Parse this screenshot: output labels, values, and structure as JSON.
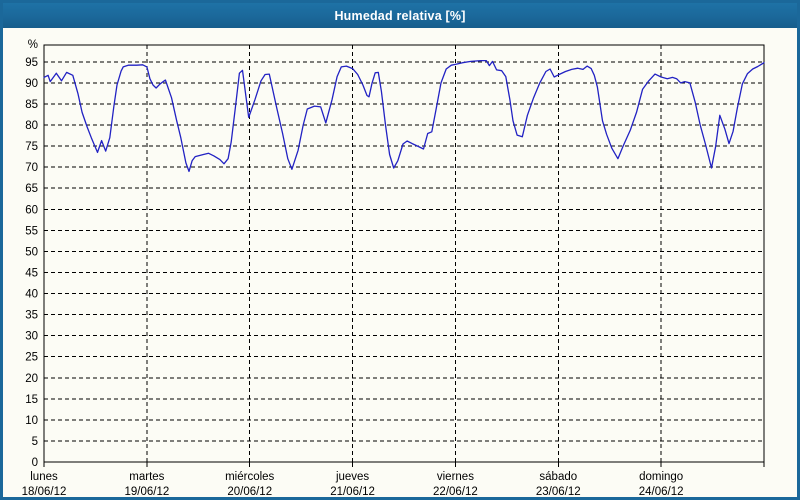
{
  "window": {
    "title": "Humedad relativa [%]"
  },
  "colors": {
    "titlebar_bg": "#1b689a",
    "frame_border": "#1b689a",
    "page_bg": "#fcfcf5",
    "title_text": "#ffffff",
    "grid": "#000000",
    "axis_text": "#000000",
    "series_line": "#2222c3"
  },
  "chart_data": {
    "type": "line",
    "title": "Humedad relativa [%]",
    "ylabel": "%",
    "xlabel": "",
    "ylim": [
      0,
      99
    ],
    "grid": "dashed",
    "legend": "none",
    "yticks": [
      0,
      5,
      10,
      15,
      20,
      25,
      30,
      35,
      40,
      45,
      50,
      55,
      60,
      65,
      70,
      75,
      80,
      85,
      90,
      95
    ],
    "days": [
      {
        "name": "lunes",
        "date": "18/06/12"
      },
      {
        "name": "martes",
        "date": "19/06/12"
      },
      {
        "name": "miércoles",
        "date": "20/06/12"
      },
      {
        "name": "jueves",
        "date": "21/06/12"
      },
      {
        "name": "viernes",
        "date": "22/06/12"
      },
      {
        "name": "sábado",
        "date": "23/06/12"
      },
      {
        "name": "domingo",
        "date": "24/06/12"
      }
    ],
    "series": [
      {
        "name": "Humedad relativa",
        "units": "%",
        "color": "#2222c3",
        "x_unit": "days_from_start",
        "points": [
          [
            0.0,
            91.3
          ],
          [
            0.04,
            91.8
          ],
          [
            0.06,
            90.3
          ],
          [
            0.12,
            92.3
          ],
          [
            0.17,
            90.5
          ],
          [
            0.22,
            92.5
          ],
          [
            0.28,
            91.8
          ],
          [
            0.33,
            87.5
          ],
          [
            0.37,
            83.0
          ],
          [
            0.42,
            79.5
          ],
          [
            0.46,
            77.0
          ],
          [
            0.52,
            73.5
          ],
          [
            0.56,
            76.3
          ],
          [
            0.6,
            73.8
          ],
          [
            0.64,
            77.0
          ],
          [
            0.68,
            84.5
          ],
          [
            0.71,
            89.5
          ],
          [
            0.75,
            92.8
          ],
          [
            0.77,
            93.8
          ],
          [
            0.82,
            94.2
          ],
          [
            0.9,
            94.2
          ],
          [
            0.96,
            94.3
          ],
          [
            1.0,
            93.8
          ],
          [
            1.03,
            91.0
          ],
          [
            1.06,
            89.5
          ],
          [
            1.09,
            88.8
          ],
          [
            1.13,
            89.8
          ],
          [
            1.18,
            90.7
          ],
          [
            1.24,
            86.5
          ],
          [
            1.29,
            81.0
          ],
          [
            1.33,
            77.0
          ],
          [
            1.38,
            71.0
          ],
          [
            1.41,
            69.0
          ],
          [
            1.44,
            71.5
          ],
          [
            1.47,
            72.5
          ],
          [
            1.55,
            73.0
          ],
          [
            1.6,
            73.3
          ],
          [
            1.65,
            72.7
          ],
          [
            1.71,
            71.8
          ],
          [
            1.75,
            70.8
          ],
          [
            1.79,
            72.0
          ],
          [
            1.82,
            76.0
          ],
          [
            1.86,
            84.0
          ],
          [
            1.9,
            92.3
          ],
          [
            1.93,
            93.0
          ],
          [
            1.99,
            81.8
          ],
          [
            2.05,
            86.0
          ],
          [
            2.11,
            90.5
          ],
          [
            2.15,
            92.0
          ],
          [
            2.19,
            92.1
          ],
          [
            2.26,
            84.3
          ],
          [
            2.32,
            78.0
          ],
          [
            2.37,
            72.0
          ],
          [
            2.41,
            69.5
          ],
          [
            2.47,
            74.0
          ],
          [
            2.52,
            80.0
          ],
          [
            2.56,
            83.8
          ],
          [
            2.63,
            84.5
          ],
          [
            2.69,
            84.3
          ],
          [
            2.74,
            80.5
          ],
          [
            2.8,
            86.0
          ],
          [
            2.85,
            91.5
          ],
          [
            2.89,
            93.8
          ],
          [
            2.94,
            94.0
          ],
          [
            3.0,
            93.4
          ],
          [
            3.05,
            92.0
          ],
          [
            3.1,
            89.5
          ],
          [
            3.14,
            87.0
          ],
          [
            3.16,
            86.7
          ],
          [
            3.19,
            90.0
          ],
          [
            3.22,
            92.4
          ],
          [
            3.25,
            92.5
          ],
          [
            3.28,
            88.0
          ],
          [
            3.32,
            80.0
          ],
          [
            3.36,
            73.0
          ],
          [
            3.4,
            69.8
          ],
          [
            3.44,
            71.5
          ],
          [
            3.49,
            75.5
          ],
          [
            3.53,
            76.2
          ],
          [
            3.58,
            75.6
          ],
          [
            3.64,
            74.9
          ],
          [
            3.69,
            74.3
          ],
          [
            3.73,
            78.0
          ],
          [
            3.77,
            78.4
          ],
          [
            3.81,
            83.5
          ],
          [
            3.86,
            90.0
          ],
          [
            3.91,
            93.3
          ],
          [
            3.96,
            94.2
          ],
          [
            4.0,
            94.4
          ],
          [
            4.07,
            94.8
          ],
          [
            4.15,
            95.1
          ],
          [
            4.25,
            95.3
          ],
          [
            4.3,
            95.3
          ],
          [
            4.33,
            94.1
          ],
          [
            4.36,
            95.1
          ],
          [
            4.4,
            93.1
          ],
          [
            4.45,
            92.9
          ],
          [
            4.49,
            91.5
          ],
          [
            4.53,
            86.0
          ],
          [
            4.56,
            81.0
          ],
          [
            4.6,
            77.6
          ],
          [
            4.65,
            77.2
          ],
          [
            4.7,
            82.3
          ],
          [
            4.76,
            86.5
          ],
          [
            4.82,
            90.0
          ],
          [
            4.88,
            92.7
          ],
          [
            4.92,
            93.3
          ],
          [
            4.96,
            91.4
          ],
          [
            5.0,
            91.9
          ],
          [
            5.07,
            92.7
          ],
          [
            5.13,
            93.2
          ],
          [
            5.19,
            93.5
          ],
          [
            5.24,
            93.2
          ],
          [
            5.28,
            94.0
          ],
          [
            5.32,
            93.4
          ],
          [
            5.35,
            91.8
          ],
          [
            5.38,
            89.0
          ],
          [
            5.43,
            81.0
          ],
          [
            5.47,
            77.8
          ],
          [
            5.52,
            74.5
          ],
          [
            5.58,
            72.0
          ],
          [
            5.63,
            75.0
          ],
          [
            5.7,
            78.8
          ],
          [
            5.76,
            83.0
          ],
          [
            5.82,
            88.5
          ],
          [
            5.88,
            90.5
          ],
          [
            5.94,
            92.1
          ],
          [
            6.0,
            91.4
          ],
          [
            6.06,
            91.0
          ],
          [
            6.11,
            91.3
          ],
          [
            6.15,
            91.0
          ],
          [
            6.19,
            90.0
          ],
          [
            6.23,
            90.3
          ],
          [
            6.28,
            90.0
          ],
          [
            6.33,
            85.5
          ],
          [
            6.38,
            80.0
          ],
          [
            6.43,
            75.5
          ],
          [
            6.49,
            69.8
          ],
          [
            6.53,
            75.0
          ],
          [
            6.57,
            82.3
          ],
          [
            6.62,
            79.0
          ],
          [
            6.66,
            75.6
          ],
          [
            6.7,
            78.5
          ],
          [
            6.74,
            84.0
          ],
          [
            6.79,
            89.8
          ],
          [
            6.84,
            92.2
          ],
          [
            6.89,
            93.3
          ],
          [
            6.94,
            93.9
          ],
          [
            7.0,
            94.8
          ]
        ]
      }
    ]
  }
}
